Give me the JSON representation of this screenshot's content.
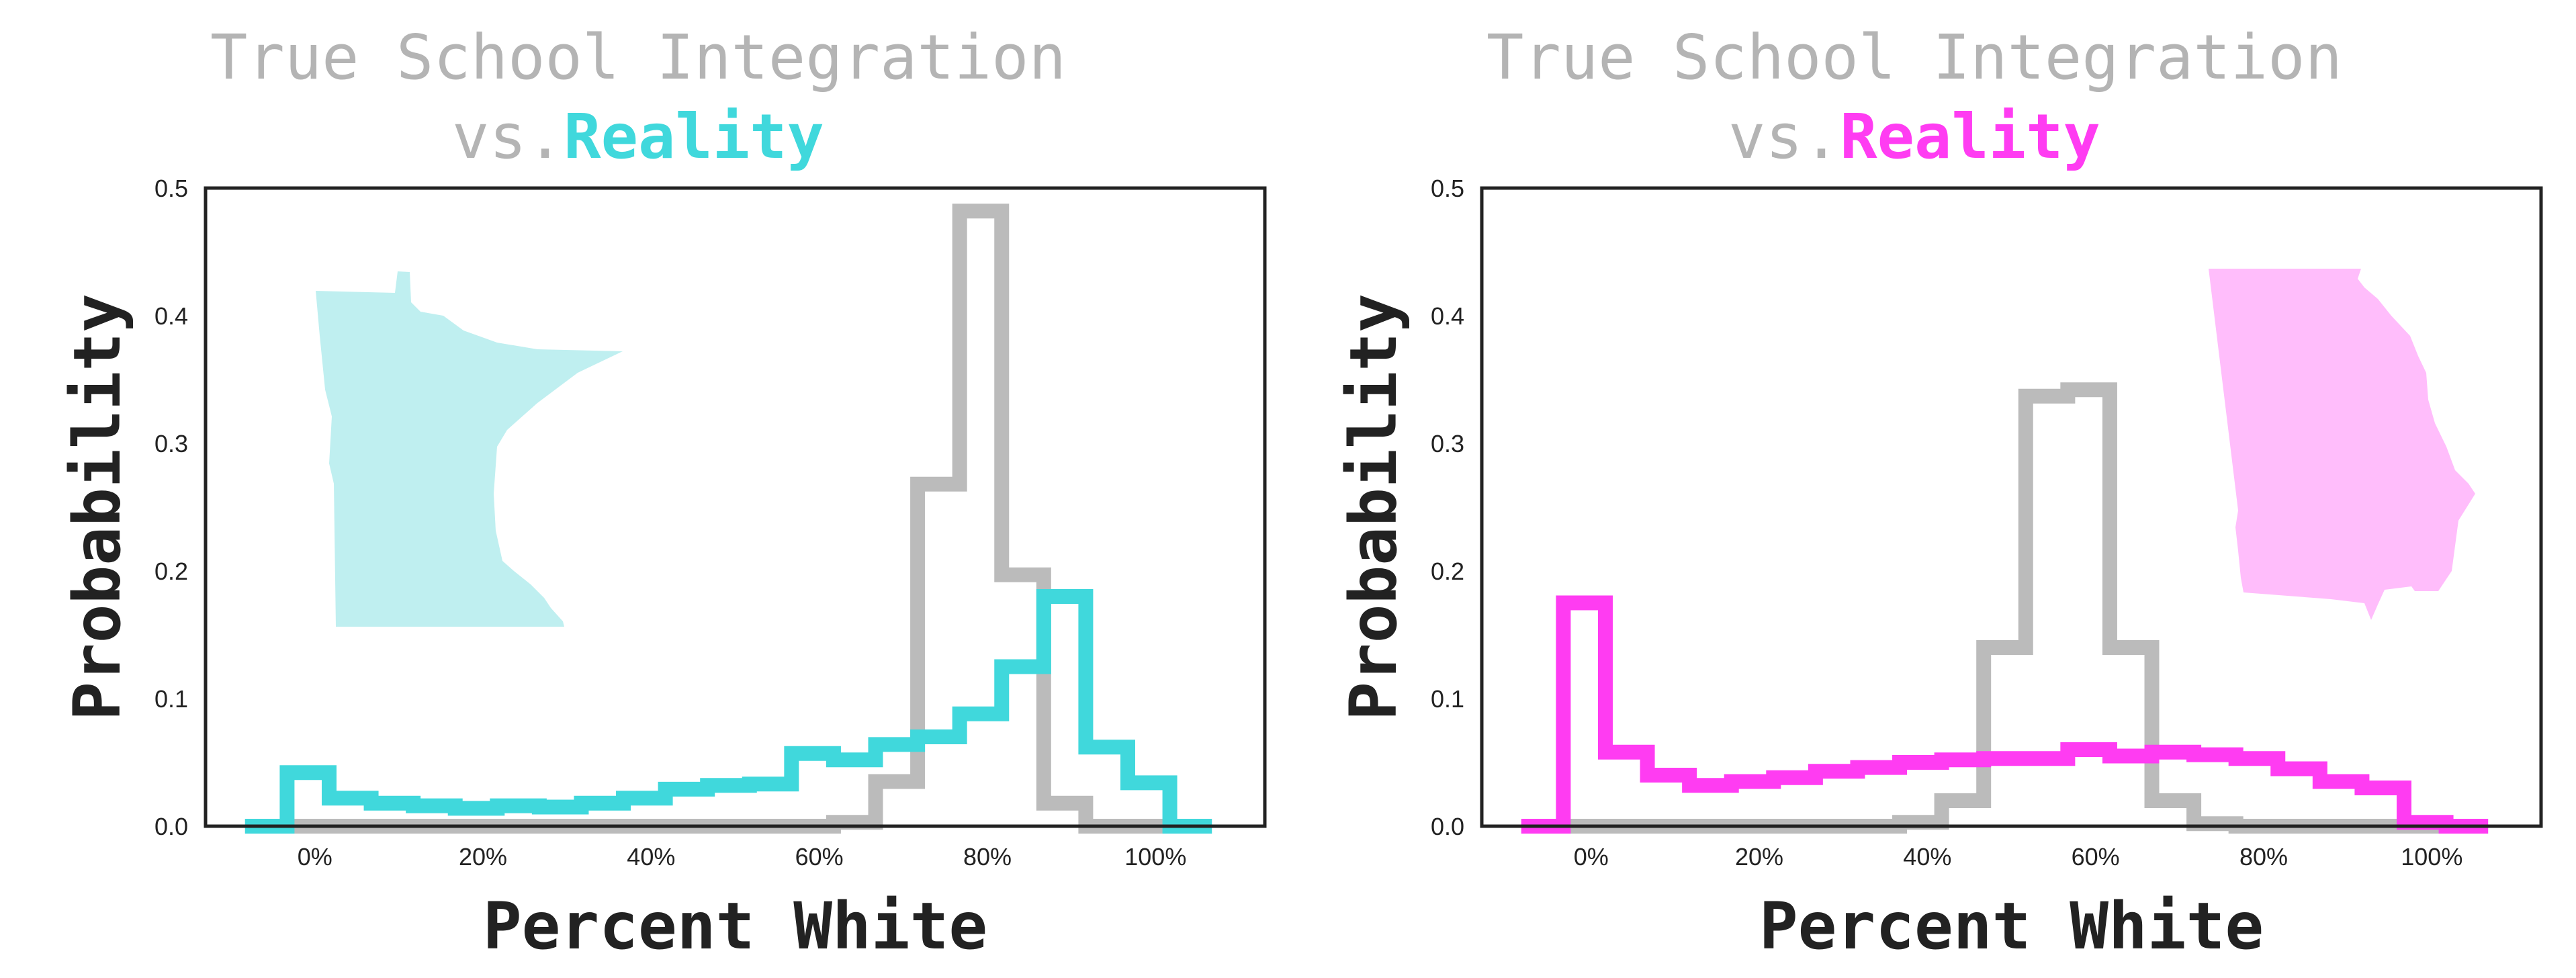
{
  "chart_data": [
    {
      "type": "histogram-step",
      "title_line1": "True School Integration",
      "title_prefix": "vs.",
      "title_highlight": "Reality",
      "accent_color": "#40d8dc",
      "map_color": "#bfeff0",
      "map_icon": "minnesota-state-silhouette",
      "xlabel": "Percent White",
      "ylabel": "Probability",
      "xlim": [
        -0.13,
        1.13
      ],
      "ylim": [
        0,
        0.5
      ],
      "x_ticks": [
        0,
        0.2,
        0.4,
        0.6,
        0.8,
        1.0
      ],
      "x_tick_labels": [
        "0%",
        "20%",
        "40%",
        "60%",
        "80%",
        "100%"
      ],
      "y_ticks": [
        0,
        0.1,
        0.2,
        0.3,
        0.4,
        0.5
      ],
      "y_tick_labels": [
        "0.0",
        "0.1",
        "0.2",
        "0.3",
        "0.4",
        "0.5"
      ],
      "series": [
        {
          "color": "#bbbbbb",
          "bin_edges": [
            -0.083,
            -0.033,
            0.017,
            0.067,
            0.117,
            0.167,
            0.217,
            0.267,
            0.317,
            0.367,
            0.417,
            0.467,
            0.517,
            0.567,
            0.617,
            0.667,
            0.717,
            0.767,
            0.817,
            0.867,
            0.917,
            0.967,
            1.017,
            1.067
          ],
          "values": [
            0,
            0,
            0,
            0,
            0,
            0,
            0,
            0,
            0,
            0,
            0,
            0,
            0,
            0,
            0.003,
            0.035,
            0.268,
            0.482,
            0.197,
            0.018,
            0,
            0,
            0
          ]
        },
        {
          "color": "#40d8dc",
          "bin_edges": [
            -0.083,
            -0.033,
            0.017,
            0.067,
            0.117,
            0.167,
            0.217,
            0.267,
            0.317,
            0.367,
            0.417,
            0.467,
            0.517,
            0.567,
            0.617,
            0.667,
            0.717,
            0.767,
            0.817,
            0.867,
            0.917,
            0.967,
            1.017,
            1.067
          ],
          "values": [
            0,
            0.042,
            0.022,
            0.018,
            0.016,
            0.014,
            0.016,
            0.015,
            0.018,
            0.022,
            0.029,
            0.032,
            0.033,
            0.057,
            0.052,
            0.064,
            0.07,
            0.088,
            0.125,
            0.18,
            0.062,
            0.034,
            0
          ]
        }
      ]
    },
    {
      "type": "histogram-step",
      "title_line1": "True School Integration",
      "title_prefix": "vs.",
      "title_highlight": "Reality",
      "accent_color": "#ff3cf2",
      "map_color": "#ffbdfb",
      "map_icon": "georgia-state-silhouette",
      "xlabel": "Percent White",
      "ylabel": "Probability",
      "xlim": [
        -0.13,
        1.13
      ],
      "ylim": [
        0,
        0.5
      ],
      "x_ticks": [
        0,
        0.2,
        0.4,
        0.6,
        0.8,
        1.0
      ],
      "x_tick_labels": [
        "0%",
        "20%",
        "40%",
        "60%",
        "80%",
        "100%"
      ],
      "y_ticks": [
        0,
        0.1,
        0.2,
        0.3,
        0.4,
        0.5
      ],
      "y_tick_labels": [
        "0.0",
        "0.1",
        "0.2",
        "0.3",
        "0.4",
        "0.5"
      ],
      "series": [
        {
          "color": "#bbbbbb",
          "bin_edges": [
            -0.083,
            -0.033,
            0.017,
            0.067,
            0.117,
            0.167,
            0.217,
            0.267,
            0.317,
            0.367,
            0.417,
            0.467,
            0.517,
            0.567,
            0.617,
            0.667,
            0.717,
            0.767,
            0.817,
            0.867,
            0.917,
            0.967,
            1.017,
            1.067
          ],
          "values": [
            0,
            0,
            0,
            0,
            0,
            0,
            0,
            0,
            0,
            0.003,
            0.02,
            0.14,
            0.337,
            0.342,
            0.14,
            0.02,
            0.002,
            0,
            0,
            0,
            0,
            0,
            0
          ]
        },
        {
          "color": "#ff3cf2",
          "bin_edges": [
            -0.083,
            -0.033,
            0.017,
            0.067,
            0.117,
            0.167,
            0.217,
            0.267,
            0.317,
            0.367,
            0.417,
            0.467,
            0.517,
            0.567,
            0.617,
            0.667,
            0.717,
            0.767,
            0.817,
            0.867,
            0.917,
            0.967,
            1.017,
            1.067
          ],
          "values": [
            0,
            0.175,
            0.058,
            0.04,
            0.032,
            0.035,
            0.038,
            0.043,
            0.046,
            0.05,
            0.052,
            0.053,
            0.053,
            0.06,
            0.055,
            0.058,
            0.056,
            0.053,
            0.045,
            0.035,
            0.03,
            0.003,
            0
          ]
        }
      ]
    }
  ]
}
